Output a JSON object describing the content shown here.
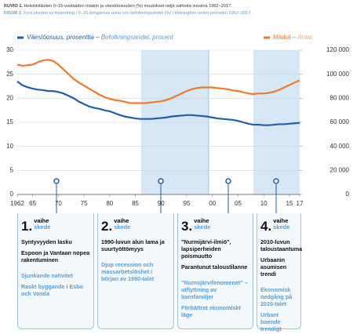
{
  "chart_data": {
    "type": "line",
    "title": "Helsinkiläisten 0–15-vuotiaiden määrin ja väestöosuuden (%) muutokset neljä vaihetta vuosina 1962–2017.",
    "title_label": "KUVIO 1.",
    "subtitle": "Fyra skeden av förändring i 0–15-åringarnas antal och befolkningsandel (%) i Helsingfors under perioden 1962–2017.",
    "subtitle_label": "FIGUR 1.",
    "x": [
      1962,
      1963,
      1964,
      1965,
      1966,
      1967,
      1968,
      1969,
      1970,
      1971,
      1972,
      1973,
      1974,
      1975,
      1976,
      1977,
      1978,
      1979,
      1980,
      1981,
      1982,
      1983,
      1984,
      1985,
      1986,
      1987,
      1988,
      1989,
      1990,
      1991,
      1992,
      1993,
      1994,
      1995,
      1996,
      1997,
      1998,
      1999,
      2000,
      2001,
      2002,
      2003,
      2004,
      2005,
      2006,
      2007,
      2008,
      2009,
      2010,
      2011,
      2012,
      2013,
      2014,
      2015,
      2016,
      2017
    ],
    "series": [
      {
        "name": "Väestöosuus, prosenttia",
        "name_sv": "Befolkningsandel, procent",
        "color": "#1f5fa8",
        "values": [
          23.5,
          22.7,
          22.3,
          22,
          21.8,
          21.7,
          21.5,
          21.5,
          21.3,
          21,
          20.5,
          20,
          19.3,
          18.8,
          18.3,
          18,
          17.8,
          17.5,
          17.3,
          16.9,
          16.5,
          16.2,
          16,
          15.8,
          15.7,
          15.7,
          15.7,
          15.8,
          15.9,
          16,
          16.2,
          16.3,
          16.4,
          16.5,
          16.5,
          16.4,
          16.3,
          16.2,
          16,
          15.8,
          15.7,
          15.6,
          15.5,
          15.3,
          15,
          14.7,
          14.5,
          14.5,
          14.4,
          14.4,
          14.5,
          14.6,
          14.6,
          14.7,
          14.8,
          14.9
        ]
      },
      {
        "name": "Määrä",
        "name_sv": "Antal",
        "color": "#f07a2a",
        "axis": "y2",
        "values": [
          108000,
          107000,
          107500,
          108000,
          110000,
          111500,
          112000,
          111000,
          108000,
          104000,
          100000,
          96000,
          93000,
          90500,
          88000,
          85500,
          83000,
          81000,
          79500,
          78500,
          78000,
          77000,
          76000,
          76000,
          76000,
          76000,
          76500,
          77000,
          77500,
          78500,
          80000,
          82000,
          84000,
          86000,
          87500,
          88500,
          89000,
          89000,
          89000,
          88500,
          88000,
          87500,
          86500,
          86000,
          85000,
          84000,
          83500,
          84000,
          84000,
          84500,
          85500,
          87000,
          89000,
          91000,
          93000,
          95000
        ]
      }
    ],
    "xlim": [
      1962,
      2017
    ],
    "xticks": [
      {
        "value": 1962,
        "label": "1962"
      },
      {
        "value": 1965,
        "label": "65"
      },
      {
        "value": 1970,
        "label": "70"
      },
      {
        "value": 1975,
        "label": "75"
      },
      {
        "value": 1980,
        "label": "80"
      },
      {
        "value": 1985,
        "label": "85"
      },
      {
        "value": 1990,
        "label": "90"
      },
      {
        "value": 1995,
        "label": "95"
      },
      {
        "value": 2000,
        "label": "00"
      },
      {
        "value": 2005,
        "label": "05"
      },
      {
        "value": 2010,
        "label": "10"
      },
      {
        "value": 2015,
        "label": "15"
      },
      {
        "value": 2017,
        "label": "17"
      }
    ],
    "ylim": [
      0,
      30
    ],
    "yticks": [
      0,
      5,
      10,
      15,
      20,
      25,
      30
    ],
    "y2lim": [
      0,
      120000
    ],
    "y2ticks": [
      0,
      {
        "value": 20000,
        "label": "20 000"
      },
      {
        "value": 40000,
        "label": "40 000"
      },
      {
        "value": 60000,
        "label": "60 000"
      },
      {
        "value": 80000,
        "label": "80 000"
      },
      {
        "value": 100000,
        "label": "100 000"
      },
      {
        "value": 120000,
        "label": "120 000"
      }
    ],
    "grid": true
  },
  "phases": [
    {
      "number": "1.",
      "vaihe": "vaihe",
      "skede": "skede",
      "fi": [
        "Syntyvyyden lasku",
        "Espoon ja Vantaan nopea rakentuminen"
      ],
      "sv": [
        "Sjunkande nativitet",
        "Raskt byggande i Esbo och Vanda"
      ]
    },
    {
      "number": "2.",
      "vaihe": "vaihe",
      "skede": "skede",
      "fi": [
        "1990-luvun alun lama ja suurtyöttömyys"
      ],
      "sv": [
        "Djup recession och massarbetslöshet i början av 1990-talet"
      ]
    },
    {
      "number": "3.",
      "vaihe": "vaihe",
      "skede": "skede",
      "fi": [
        "\"Nurmijärvi-ilmiö\", lapsiperheiden poismuutto",
        "Parantunut taloustilanne"
      ],
      "sv": [
        "\"Nurmijärvifenomenet\" – utflyttning av barnfamiljer",
        "Förbättrat ekonomiskt läge"
      ]
    },
    {
      "number": "4.",
      "vaihe": "vaihe",
      "skede": "skede",
      "fi": [
        "2010-luvun taloustaantuma",
        "Urbaanin asumisen trendi"
      ],
      "sv": [
        "Ekonomisk nedgång på 2010-talet",
        "Urbant boende trendigt"
      ]
    }
  ]
}
